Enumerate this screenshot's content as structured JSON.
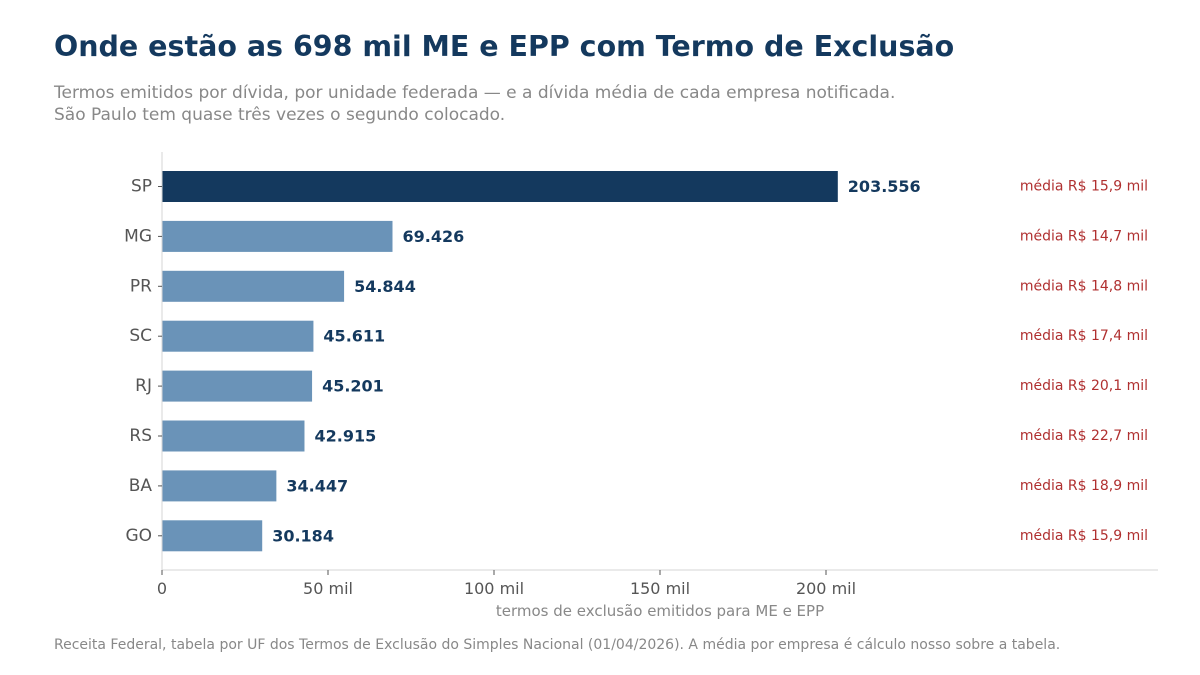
{
  "header": {
    "title": "Onde estão as 698 mil ME e EPP com Termo de Exclusão",
    "subtitle_line1": "Termos emitidos por dívida, por unidade federada — e a dívida média de cada empresa notificada.",
    "subtitle_line2": "São Paulo tem quase três vezes o segundo colocado."
  },
  "footer": {
    "source": "Receita Federal, tabela por UF dos Termos de Exclusão do Simples Nacional (01/04/2026). A média por empresa é cálculo nosso sobre a tabela."
  },
  "colors": {
    "highlight_bar": "#14395e",
    "bar": "#6a93b8",
    "value_label": "#14395e",
    "avg_label": "#b03030",
    "title": "#14395e",
    "muted": "#888888"
  },
  "chart_data": {
    "type": "bar",
    "orientation": "horizontal",
    "categories": [
      "SP",
      "MG",
      "PR",
      "SC",
      "RJ",
      "RS",
      "BA",
      "GO"
    ],
    "values": [
      203556,
      69426,
      54844,
      45611,
      45201,
      42915,
      34447,
      30184
    ],
    "value_labels": [
      "203.556",
      "69.426",
      "54.844",
      "45.611",
      "45.201",
      "42.915",
      "34.447",
      "30.184"
    ],
    "annotations": [
      "média R$ 15,9 mil",
      "média R$ 14,7 mil",
      "média R$ 14,8 mil",
      "média R$ 17,4 mil",
      "média R$ 20,1 mil",
      "média R$ 22,7 mil",
      "média R$ 18,9 mil",
      "média R$ 15,9 mil"
    ],
    "highlight": "SP",
    "xlabel": "termos de exclusão emitidos para ME e EPP",
    "xlim": [
      0,
      300000
    ],
    "xticks": [
      0,
      50000,
      100000,
      150000,
      200000
    ],
    "xtick_labels": [
      "0",
      "50 mil",
      "100 mil",
      "150 mil",
      "200 mil"
    ],
    "grid": false
  }
}
